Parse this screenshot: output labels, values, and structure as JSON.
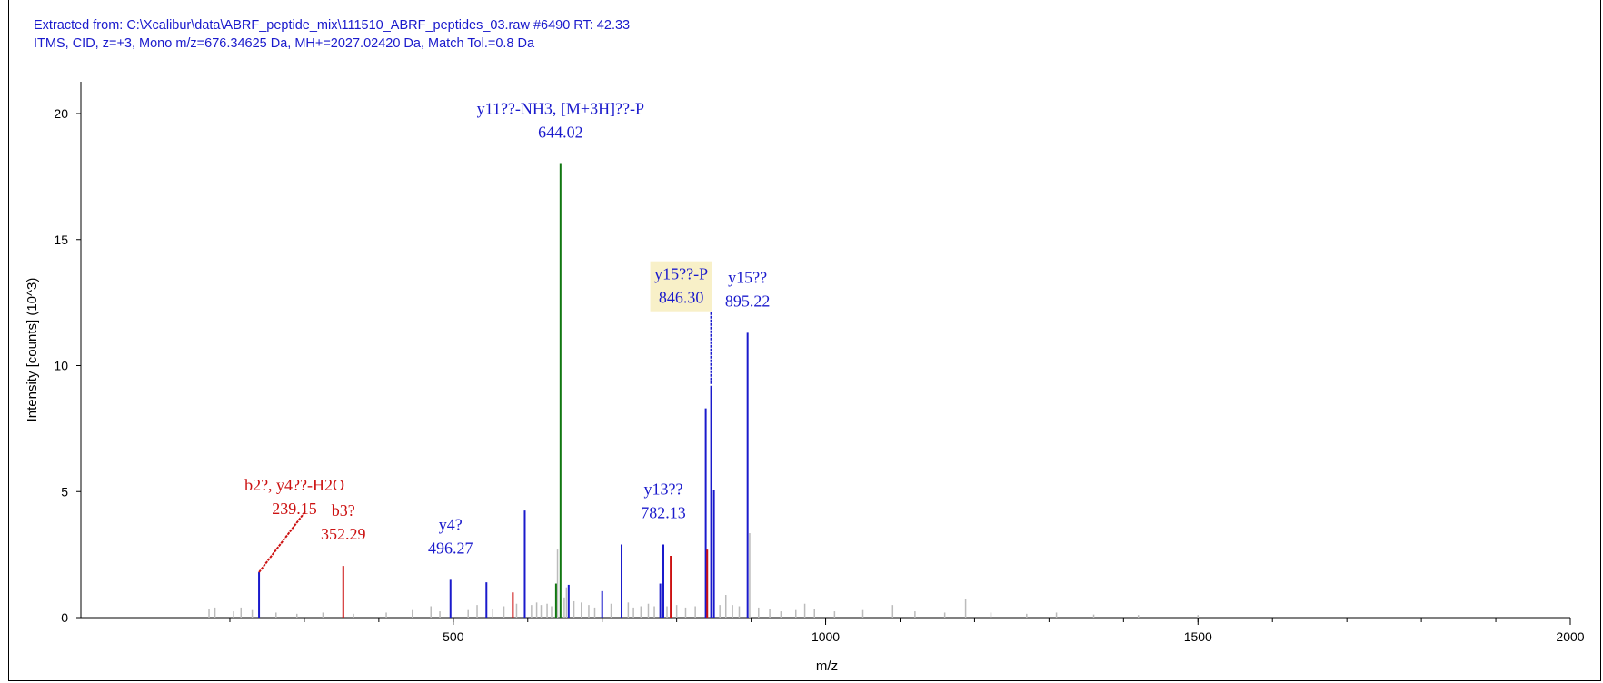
{
  "header": {
    "line1": "Extracted from: C:\\Xcalibur\\data\\ABRF_peptide_mix\\111510_ABRF_peptides_03.raw   #6490   RT: 42.33",
    "line2": "ITMS, CID, z=+3, Mono m/z=676.34625 Da, MH+=2027.02420 Da, Match Tol.=0.8 Da"
  },
  "colors": {
    "b_ion": "#cc1111",
    "y_ion": "#1a1acc",
    "precursor": "#117711",
    "unassigned": "#bbbbbb",
    "highlight": "#f8f0c8",
    "axis": "#000000"
  },
  "chart_data": {
    "type": "bar",
    "xlabel": "m/z",
    "ylabel": "Intensity [counts] (10^3)",
    "xlim": [
      150,
      2000
    ],
    "ylim": [
      0,
      21
    ],
    "xticks": [
      500,
      1000,
      1500,
      2000
    ],
    "yticks": [
      0,
      5,
      10,
      15,
      20
    ],
    "grid": false,
    "annotated_peaks": [
      {
        "mz": 239.15,
        "intensity": 1.8,
        "ion": "y"
      },
      {
        "mz": 352.29,
        "intensity": 2.05,
        "ion": "b"
      },
      {
        "mz": 496.27,
        "intensity": 1.5,
        "ion": "y"
      },
      {
        "mz": 544.5,
        "intensity": 1.4,
        "ion": "y"
      },
      {
        "mz": 580.0,
        "intensity": 1.0,
        "ion": "b"
      },
      {
        "mz": 596.0,
        "intensity": 4.25,
        "ion": "y"
      },
      {
        "mz": 638.0,
        "intensity": 1.35,
        "ion": "precursor"
      },
      {
        "mz": 644.02,
        "intensity": 18.0,
        "ion": "precursor"
      },
      {
        "mz": 655.0,
        "intensity": 1.3,
        "ion": "y"
      },
      {
        "mz": 700.0,
        "intensity": 1.05,
        "ion": "y"
      },
      {
        "mz": 726.0,
        "intensity": 2.9,
        "ion": "y"
      },
      {
        "mz": 778.0,
        "intensity": 1.35,
        "ion": "y"
      },
      {
        "mz": 782.13,
        "intensity": 2.9,
        "ion": "y"
      },
      {
        "mz": 792.0,
        "intensity": 2.45,
        "ion": "b"
      },
      {
        "mz": 839.0,
        "intensity": 8.3,
        "ion": "y"
      },
      {
        "mz": 841.0,
        "intensity": 2.7,
        "ion": "b"
      },
      {
        "mz": 846.3,
        "intensity": 9.2,
        "ion": "y"
      },
      {
        "mz": 850.0,
        "intensity": 5.05,
        "ion": "y"
      },
      {
        "mz": 895.22,
        "intensity": 11.3,
        "ion": "y"
      }
    ],
    "noise_peaks": [
      [
        172,
        0.35
      ],
      [
        180,
        0.4
      ],
      [
        205,
        0.25
      ],
      [
        215,
        0.4
      ],
      [
        230,
        0.3
      ],
      [
        262,
        0.2
      ],
      [
        290,
        0.15
      ],
      [
        325,
        0.2
      ],
      [
        366,
        0.15
      ],
      [
        410,
        0.2
      ],
      [
        445,
        0.3
      ],
      [
        470,
        0.45
      ],
      [
        482,
        0.25
      ],
      [
        520,
        0.3
      ],
      [
        532,
        0.5
      ],
      [
        553,
        0.35
      ],
      [
        568,
        0.45
      ],
      [
        585,
        0.55
      ],
      [
        605,
        0.5
      ],
      [
        612,
        0.6
      ],
      [
        618,
        0.5
      ],
      [
        626,
        0.55
      ],
      [
        632,
        0.45
      ],
      [
        640,
        2.7
      ],
      [
        649,
        0.8
      ],
      [
        652,
        1.2
      ],
      [
        662,
        0.65
      ],
      [
        672,
        0.6
      ],
      [
        682,
        0.5
      ],
      [
        690,
        0.4
      ],
      [
        712,
        0.55
      ],
      [
        735,
        0.6
      ],
      [
        742,
        0.4
      ],
      [
        752,
        0.45
      ],
      [
        762,
        0.55
      ],
      [
        770,
        0.45
      ],
      [
        787,
        0.45
      ],
      [
        800,
        0.5
      ],
      [
        812,
        0.4
      ],
      [
        825,
        0.45
      ],
      [
        858,
        0.5
      ],
      [
        866,
        0.9
      ],
      [
        875,
        0.5
      ],
      [
        884,
        0.45
      ],
      [
        898,
        3.35
      ],
      [
        910,
        0.4
      ],
      [
        925,
        0.35
      ],
      [
        940,
        0.25
      ],
      [
        960,
        0.3
      ],
      [
        972,
        0.55
      ],
      [
        985,
        0.35
      ],
      [
        1012,
        0.25
      ],
      [
        1050,
        0.3
      ],
      [
        1090,
        0.5
      ],
      [
        1120,
        0.25
      ],
      [
        1160,
        0.2
      ],
      [
        1188,
        0.75
      ],
      [
        1222,
        0.2
      ],
      [
        1270,
        0.15
      ],
      [
        1310,
        0.2
      ],
      [
        1360,
        0.12
      ],
      [
        1420,
        0.1
      ],
      [
        1500,
        0.1
      ]
    ],
    "labels": [
      {
        "lines": [
          "b2?, y4??-H2O",
          "239.15"
        ],
        "mz": 239.15,
        "intensity": 1.8,
        "ion": "b",
        "anchor": "upper"
      },
      {
        "lines": [
          "b3?",
          "352.29"
        ],
        "mz": 352.29,
        "intensity": 2.05,
        "ion": "b",
        "anchor": "above"
      },
      {
        "lines": [
          "y4?",
          "496.27"
        ],
        "mz": 496.27,
        "intensity": 1.5,
        "ion": "y",
        "anchor": "above"
      },
      {
        "lines": [
          "y11??-NH3, [M+3H]??-P",
          "644.02"
        ],
        "mz": 644.02,
        "intensity": 18.0,
        "ion": "y",
        "anchor": "above"
      },
      {
        "lines": [
          "y13??",
          "782.13"
        ],
        "mz": 782.13,
        "intensity": 2.9,
        "ion": "y",
        "anchor": "above"
      },
      {
        "lines": [
          "y15??-P",
          "846.30"
        ],
        "mz": 846.3,
        "intensity": 9.2,
        "ion": "y",
        "anchor": "above-left",
        "highlight": true
      },
      {
        "lines": [
          "y15??",
          "895.22"
        ],
        "mz": 895.22,
        "intensity": 11.3,
        "ion": "y",
        "anchor": "above"
      }
    ]
  }
}
